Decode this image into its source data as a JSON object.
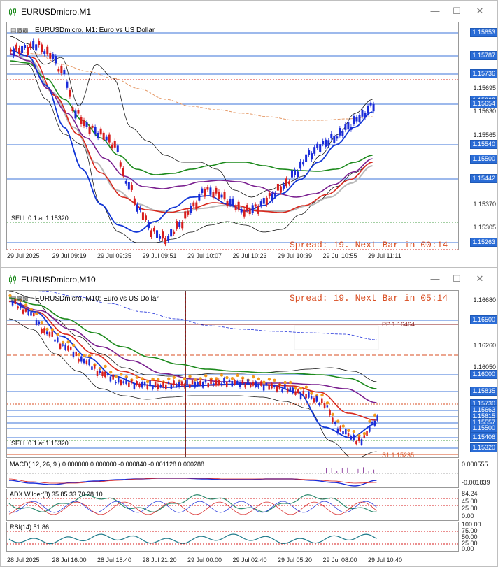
{
  "window1": {
    "title": "EURUSDmicro,M1",
    "chart_label": "EURUSDmicro, M1:  Euro vs US Dollar",
    "spread_text": "Spread: 19. Next Bar in 00:14",
    "sell_text": "SELL 0.1 at 1.15320",
    "price_labels": [
      {
        "text": "1.15853",
        "hl": true
      },
      {
        "text": "1.15787",
        "hl": true
      },
      {
        "text": "1.15736",
        "hl": true
      },
      {
        "text": "1.15695",
        "hl": false
      },
      {
        "text": "1.15662",
        "hl": true
      },
      {
        "text": "1.15654",
        "hl": true
      },
      {
        "text": "1.15630",
        "hl": false
      },
      {
        "text": "1.15565",
        "hl": false
      },
      {
        "text": "1.15540",
        "hl": true
      },
      {
        "text": "1.15500",
        "hl": true
      },
      {
        "text": "1.15442",
        "hl": true
      },
      {
        "text": "1.15370",
        "hl": false
      },
      {
        "text": "1.15305",
        "hl": false
      },
      {
        "text": "1.15263",
        "hl": true
      }
    ],
    "time_labels": [
      "29 Jul 2025",
      "29 Jul 09:19",
      "29 Jul 09:35",
      "29 Jul 09:51",
      "29 Jul 10:07",
      "29 Jul 10:23",
      "29 Jul 10:39",
      "29 Jul 10:55",
      "29 Jul 11:11"
    ]
  },
  "window2": {
    "title": "EURUSDmicro,M10",
    "chart_label": "EURUSDmicro, M10:  Euro vs US Dollar",
    "spread_text": "Spread: 19. Next Bar in 05:14",
    "sell_text": "SELL 0.1 at 1.15320",
    "pp_text": "PP 1.16464",
    "s1_text": "S1 1.15235",
    "price_labels": [
      {
        "text": "1.16680",
        "hl": false
      },
      {
        "text": "1.16500",
        "hl": true
      },
      {
        "text": "1.16260",
        "hl": false
      },
      {
        "text": "1.16050",
        "hl": false
      },
      {
        "text": "1.16000",
        "hl": true
      },
      {
        "text": "1.15835",
        "hl": true
      },
      {
        "text": "1.15730",
        "hl": true
      },
      {
        "text": "1.15663",
        "hl": true
      },
      {
        "text": "1.15615",
        "hl": true
      },
      {
        "text": "1.15557",
        "hl": true
      },
      {
        "text": "1.15500",
        "hl": true
      },
      {
        "text": "1.15406",
        "hl": true
      },
      {
        "text": "1.15320",
        "hl": true
      }
    ],
    "macd_label": "MACD( 12, 26, 9 ) 0.000000 0.000000 -0.000840 -0.001128 0.000288",
    "macd_scale": [
      "0.000555",
      "-0.001839"
    ],
    "adx_label": "ADX Wilder(8) 35.85 33.70 28.10",
    "adx_scale": [
      "84.24",
      "45.00",
      "25.00",
      "0.00"
    ],
    "rsi_label": "RSI(14) 51.86",
    "rsi_scale": [
      "100.00",
      "75.00",
      "50.00",
      "25.00",
      "0.00"
    ],
    "time_labels": [
      "28 Jul 2025",
      "28 Jul 16:00",
      "28 Jul 18:40",
      "28 Jul 21:20",
      "29 Jul 00:00",
      "29 Jul 02:40",
      "29 Jul 05:20",
      "29 Jul 08:00",
      "29 Jul 10:40"
    ]
  },
  "colors": {
    "bull": "#1a2bd9",
    "bear": "#d71d1d",
    "ma_blue": "#1236d6",
    "ma_red": "#d8281d",
    "ma_purple": "#7a1f8f",
    "ma_green": "#1c8a1c",
    "ma_gray": "#b9b9b9",
    "spread": "#d94e22",
    "highlight": "#2a6cd6",
    "sar": "#f39a1c"
  },
  "icons": [
    "chart-window-icon",
    "minimize-icon",
    "maximize-icon",
    "close-icon"
  ]
}
